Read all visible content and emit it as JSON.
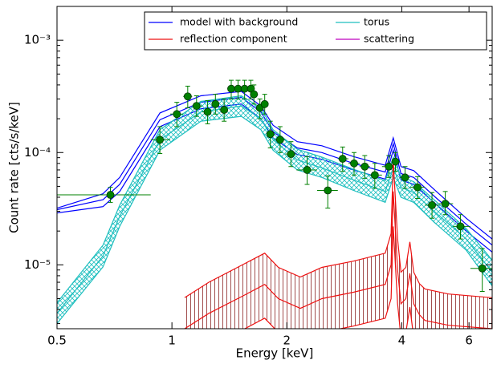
{
  "chart_data": {
    "type": "line",
    "xlabel": "Energy [keV]",
    "ylabel": "Count rate [cts/s/keV]",
    "xscale": "log",
    "yscale": "log",
    "xlim": [
      0.5,
      6.9
    ],
    "ylim": [
      2.7e-06,
      0.002
    ],
    "xticks": [
      0.5,
      1,
      2,
      4,
      6
    ],
    "yticks": [
      {
        "value": 1e-05,
        "label": "10⁻⁵"
      },
      {
        "value": 0.0001,
        "label": "10⁻⁴"
      },
      {
        "value": 0.001,
        "label": "10⁻³"
      }
    ],
    "legend": "upper right",
    "series": [
      {
        "name": "model with background",
        "color": "#0000ff",
        "hatch": "none",
        "x": [
          0.5,
          0.66,
          0.73,
          0.93,
          1.19,
          1.52,
          1.71,
          1.84,
          2.13,
          2.47,
          2.99,
          3.62,
          3.8,
          3.98,
          4.3,
          4.86,
          5.9,
          6.9
        ],
        "values": [
          3.1e-05,
          3.8e-05,
          5.2e-05,
          0.000196,
          0.00028,
          0.00031,
          0.00023,
          0.000153,
          0.00011,
          0.0001,
          8e-05,
          6.7e-05,
          0.00012,
          6.5e-05,
          6e-05,
          4.1e-05,
          2.3e-05,
          1.5e-05
        ],
        "lower": [
          2.9e-05,
          3.3e-05,
          4.5e-05,
          0.00017,
          0.000245,
          0.00027,
          0.0002,
          0.000135,
          9.6e-05,
          8.7e-05,
          7e-05,
          5.8e-05,
          0.000105,
          5.7e-05,
          5.2e-05,
          3.6e-05,
          2e-05,
          1.3e-05
        ],
        "upper": [
          3.2e-05,
          4.3e-05,
          6e-05,
          0.000225,
          0.00032,
          0.00035,
          0.00026,
          0.000175,
          0.000125,
          0.000115,
          9.2e-05,
          7.7e-05,
          0.000135,
          7.5e-05,
          6.9e-05,
          4.7e-05,
          2.6e-05,
          1.7e-05
        ]
      },
      {
        "name": "torus",
        "color": "#1fbfbf",
        "hatch": "cross",
        "x": [
          0.5,
          0.66,
          0.73,
          0.93,
          1.19,
          1.52,
          1.71,
          1.84,
          2.13,
          2.47,
          2.99,
          3.62,
          3.8,
          3.98,
          4.3,
          4.86,
          5.9,
          6.9
        ],
        "values": [
          3.7e-06,
          1.2e-05,
          2.7e-05,
          0.00013,
          0.00023,
          0.00026,
          0.0002,
          0.00013,
          8.6e-05,
          7.3e-05,
          5.7e-05,
          4.5e-05,
          7.3e-05,
          4.9e-05,
          4.4e-05,
          3e-05,
          1.7e-05,
          8.6e-06
        ],
        "lower": [
          3e-06,
          9.6e-06,
          2.2e-05,
          0.000105,
          0.00019,
          0.00021,
          0.00016,
          0.000105,
          7e-05,
          6e-05,
          4.6e-05,
          3.6e-05,
          6e-05,
          4e-05,
          3.6e-05,
          2.4e-05,
          1.35e-05,
          6.5e-06
        ],
        "upper": [
          4.6e-06,
          1.5e-05,
          3.4e-05,
          0.00016,
          0.000285,
          0.00032,
          0.00025,
          0.00016,
          0.000107,
          9.1e-05,
          7.1e-05,
          5.6e-05,
          9.1e-05,
          6.1e-05,
          5.5e-05,
          3.8e-05,
          2.1e-05,
          1.1e-05
        ]
      },
      {
        "name": "reflection component",
        "color": "#ee1111",
        "hatch": "vertical",
        "x": [
          1.08,
          1.25,
          1.52,
          1.75,
          1.9,
          2.17,
          2.47,
          2.99,
          3.62,
          3.75,
          3.8,
          3.9,
          3.98,
          4.1,
          4.2,
          4.3,
          4.45,
          4.6,
          5.3,
          6.9
        ],
        "values": [
          2.7e-06,
          3.7e-06,
          5.2e-06,
          6.7e-06,
          5e-06,
          4.1e-06,
          5e-06,
          5.7e-06,
          6.7e-06,
          1e-05,
          4.5e-05,
          9e-06,
          4.5e-06,
          5e-06,
          8.4e-06,
          4.5e-06,
          3.6e-06,
          3.2e-06,
          2.9e-06,
          2.7e-06
        ],
        "lower": [
          1.35e-06,
          1.85e-06,
          2.6e-06,
          3.35e-06,
          2.5e-06,
          2.05e-06,
          2.5e-06,
          2.85e-06,
          3.35e-06,
          5e-06,
          2.2e-05,
          4.5e-06,
          2.25e-06,
          2.5e-06,
          4.2e-06,
          2.25e-06,
          1.8e-06,
          1.6e-06,
          1.45e-06,
          1.35e-06
        ],
        "upper": [
          5.1e-06,
          7e-06,
          9.9e-06,
          1.27e-05,
          9.5e-06,
          7.8e-06,
          9.5e-06,
          1.08e-05,
          1.27e-05,
          1.9e-05,
          8.5e-05,
          1.7e-05,
          8.6e-06,
          9.5e-06,
          1.6e-05,
          8.6e-06,
          6.8e-06,
          6.1e-06,
          5.5e-06,
          5.1e-06
        ]
      },
      {
        "name": "scattering",
        "color": "#bf00bf",
        "hatch": "none",
        "x": [],
        "values": [],
        "lower": [],
        "upper": []
      }
    ],
    "data_points": {
      "color": "#008000",
      "x": [
        0.69,
        0.93,
        1.03,
        1.1,
        1.16,
        1.24,
        1.3,
        1.37,
        1.43,
        1.49,
        1.55,
        1.61,
        1.64,
        1.7,
        1.75,
        1.81,
        1.92,
        2.05,
        2.26,
        2.56,
        2.8,
        3.0,
        3.2,
        3.4,
        3.7,
        3.85,
        4.08,
        4.4,
        4.8,
        5.2,
        5.7,
        6.5
      ],
      "xlo": [
        0.5,
        0.88,
        0.99,
        1.07,
        1.13,
        1.2,
        1.27,
        1.33,
        1.4,
        1.46,
        1.52,
        1.58,
        1.62,
        1.68,
        1.72,
        1.79,
        1.86,
        1.98,
        2.12,
        2.4,
        2.72,
        2.9,
        3.1,
        3.3,
        3.55,
        3.78,
        3.95,
        4.2,
        4.6,
        5.0,
        5.45,
        6.05
      ],
      "xhi": [
        0.88,
        0.99,
        1.07,
        1.13,
        1.2,
        1.27,
        1.33,
        1.4,
        1.46,
        1.52,
        1.58,
        1.62,
        1.68,
        1.72,
        1.79,
        1.86,
        1.98,
        2.12,
        2.4,
        2.72,
        2.9,
        3.1,
        3.3,
        3.55,
        3.78,
        3.95,
        4.2,
        4.6,
        5.0,
        5.45,
        6.05,
        6.9
      ],
      "values": [
        4.2e-05,
        0.00013,
        0.00022,
        0.000316,
        0.00026,
        0.00023,
        0.00027,
        0.00024,
        0.00037,
        0.00037,
        0.00037,
        0.00037,
        0.00033,
        0.00025,
        0.00027,
        0.000146,
        0.00013,
        9.7e-05,
        7e-05,
        4.6e-05,
        8.8e-05,
        8e-05,
        7.5e-05,
        6.3e-05,
        7.5e-05,
        8.3e-05,
        6e-05,
        4.9e-05,
        3.4e-05,
        3.5e-05,
        2.2e-05,
        9.3e-06
      ],
      "ylo": [
        3.6e-05,
        9.8e-05,
        0.00017,
        0.00025,
        0.00021,
        0.00018,
        0.00022,
        0.00019,
        0.0003,
        0.0003,
        0.0003,
        0.0003,
        0.00027,
        0.0002,
        0.00022,
        0.00011,
        0.0001,
        7.5e-05,
        5.2e-05,
        3.2e-05,
        6.8e-05,
        6.3e-05,
        5.9e-05,
        4.8e-05,
        6e-05,
        6.8e-05,
        4.8e-05,
        3.9e-05,
        2.6e-05,
        2.8e-05,
        1.7e-05,
        5.8e-06
      ],
      "yhi": [
        4.9e-05,
        0.00017,
        0.00028,
        0.00039,
        0.00032,
        0.00029,
        0.00033,
        0.0003,
        0.00044,
        0.00044,
        0.00044,
        0.00044,
        0.0004,
        0.0003,
        0.00033,
        0.00019,
        0.00017,
        0.000125,
        9.2e-05,
        6.2e-05,
        0.000112,
        0.0001,
        9.4e-05,
        8e-05,
        9.4e-05,
        0.0001,
        7.5e-05,
        6.1e-05,
        4.4e-05,
        4.5e-05,
        2.8e-05,
        1.4e-05
      ]
    }
  }
}
